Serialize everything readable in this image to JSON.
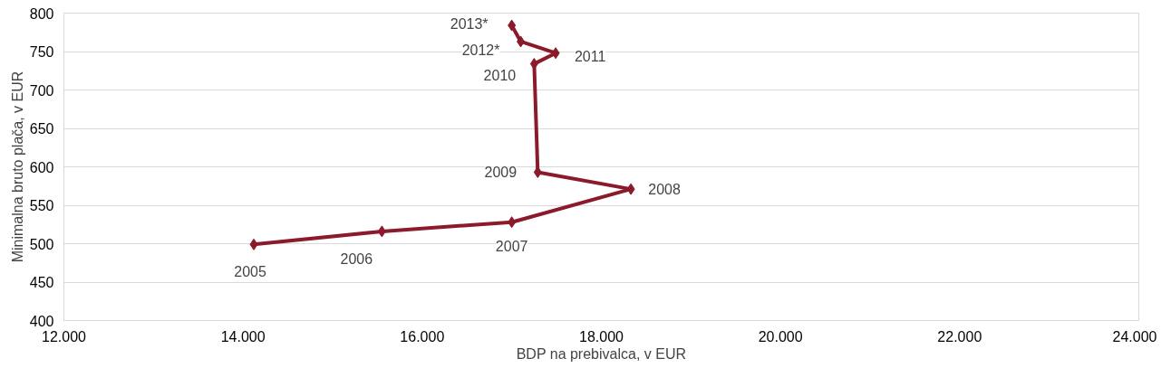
{
  "chart_data": {
    "type": "line",
    "xlabel": "BDP na prebivalca, v EUR",
    "ylabel": "Minimalna bruto plača, v EUR",
    "x": [
      14120,
      15550,
      17000,
      18330,
      17290,
      17250,
      17490,
      17100,
      17000
    ],
    "series": [
      {
        "color": "#8b1a2b",
        "values": [
          499,
          516,
          528,
          571,
          593,
          734,
          748,
          763,
          784
        ]
      }
    ],
    "xlim": [
      12000,
      24000
    ],
    "ylim": [
      400,
      800
    ],
    "xticks": [
      {
        "value": 12000,
        "label": "12.000"
      },
      {
        "value": 14000,
        "label": "14.000"
      },
      {
        "value": 16000,
        "label": "16.000"
      },
      {
        "value": 18000,
        "label": "18.000"
      },
      {
        "value": 20000,
        "label": "20.000"
      },
      {
        "value": 22000,
        "label": "22.000"
      },
      {
        "value": 24000,
        "label": "24.000"
      }
    ],
    "yticks": [
      400,
      450,
      500,
      550,
      600,
      650,
      700,
      750,
      800
    ],
    "grid": "y",
    "marker": "diamond",
    "line_style": "solid",
    "annotations": [
      {
        "text": "2005",
        "x": 14120,
        "y": 499
      },
      {
        "text": "2006",
        "x": 15550,
        "y": 516
      },
      {
        "text": "2007",
        "x": 17000,
        "y": 528
      },
      {
        "text": "2008",
        "x": 18330,
        "y": 571
      },
      {
        "text": "2009",
        "x": 17290,
        "y": 593
      },
      {
        "text": "2010",
        "x": 17250,
        "y": 734
      },
      {
        "text": "2011",
        "x": 17490,
        "y": 748
      },
      {
        "text": "2012*",
        "x": 17100,
        "y": 763
      },
      {
        "text": "2013*",
        "x": 17000,
        "y": 784
      }
    ]
  }
}
